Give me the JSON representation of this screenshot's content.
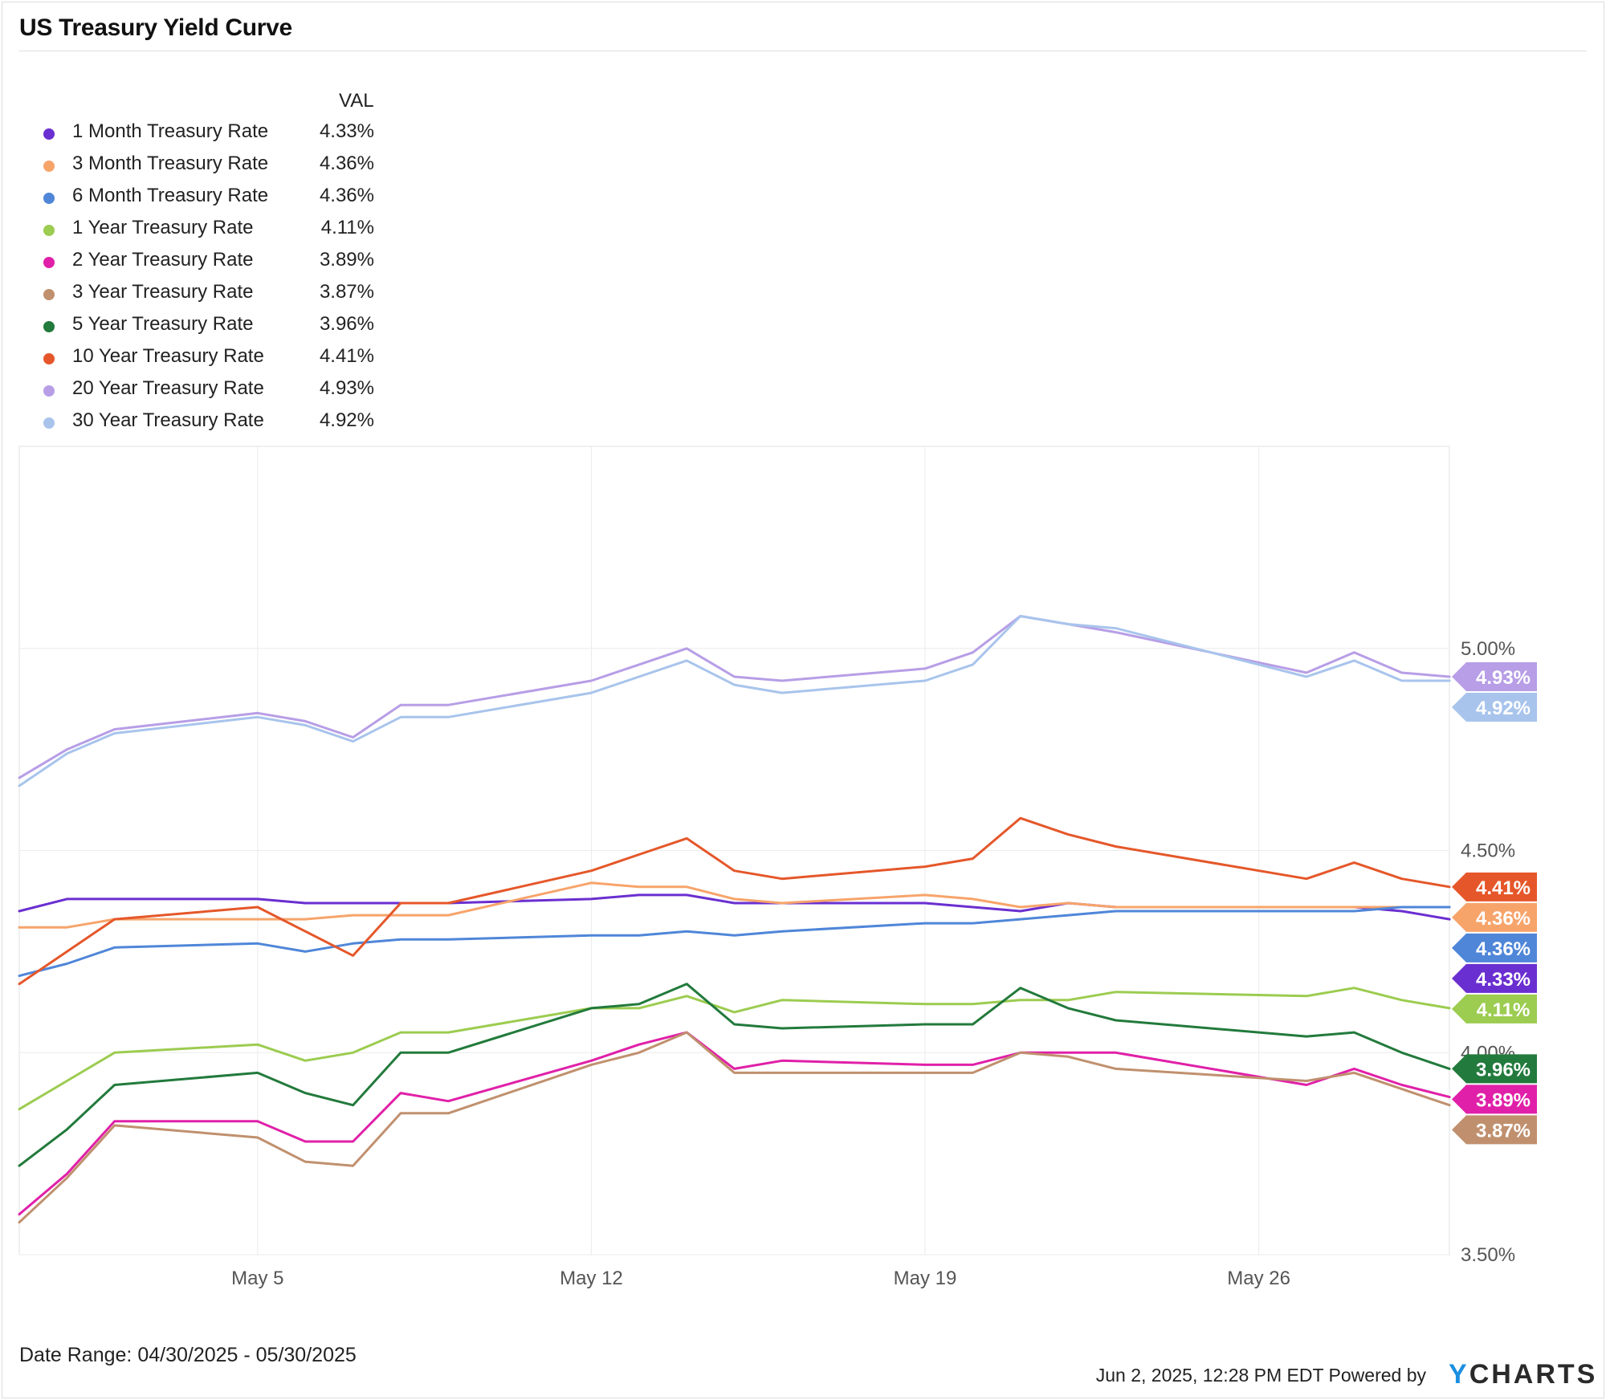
{
  "title": "US Treasury Yield Curve",
  "legend_header": "VAL",
  "date_range": "Date Range: 04/30/2025 - 05/30/2025",
  "footer": {
    "timestamp": "Jun 2, 2025, 12:28 PM EDT Powered by",
    "logo_y": "Y",
    "logo_rest": "CHARTS"
  },
  "chart_data": {
    "type": "line",
    "title": "US Treasury Yield Curve",
    "xlabel": "",
    "ylabel": "",
    "ylim": [
      3.5,
      5.5
    ],
    "yticks": [
      "3.50%",
      "4.00%",
      "4.50%",
      "5.00%"
    ],
    "xticks": [
      "May 5",
      "May 12",
      "May 19",
      "May 26"
    ],
    "grid": true,
    "legend_position": "top-left",
    "x": [
      "2025-04-30",
      "2025-05-01",
      "2025-05-02",
      "2025-05-05",
      "2025-05-06",
      "2025-05-07",
      "2025-05-08",
      "2025-05-09",
      "2025-05-12",
      "2025-05-13",
      "2025-05-14",
      "2025-05-15",
      "2025-05-16",
      "2025-05-19",
      "2025-05-20",
      "2025-05-21",
      "2025-05-22",
      "2025-05-23",
      "2025-05-27",
      "2025-05-28",
      "2025-05-29",
      "2025-05-30"
    ],
    "series": [
      {
        "name": "1 Month Treasury Rate",
        "color": "#6a2fd0",
        "label": "4.33%",
        "values": [
          4.35,
          4.38,
          4.38,
          4.38,
          4.37,
          4.37,
          4.37,
          4.37,
          4.38,
          4.39,
          4.39,
          4.37,
          4.37,
          4.37,
          4.36,
          4.35,
          4.37,
          4.36,
          4.36,
          4.36,
          4.35,
          4.33
        ]
      },
      {
        "name": "3 Month Treasury Rate",
        "color": "#f7a46b",
        "label": "4.36%",
        "values": [
          4.31,
          4.31,
          4.33,
          4.33,
          4.33,
          4.34,
          4.34,
          4.34,
          4.42,
          4.41,
          4.41,
          4.38,
          4.37,
          4.39,
          4.38,
          4.36,
          4.37,
          4.36,
          4.36,
          4.36,
          4.36,
          4.36
        ]
      },
      {
        "name": "6 Month Treasury Rate",
        "color": "#4f86d8",
        "label": "4.36%",
        "values": [
          4.19,
          4.22,
          4.26,
          4.27,
          4.25,
          4.27,
          4.28,
          4.28,
          4.29,
          4.29,
          4.3,
          4.29,
          4.3,
          4.32,
          4.32,
          4.33,
          4.34,
          4.35,
          4.35,
          4.35,
          4.36,
          4.36
        ]
      },
      {
        "name": "1 Year Treasury Rate",
        "color": "#9ccc50",
        "label": "4.11%",
        "values": [
          3.86,
          3.93,
          4.0,
          4.02,
          3.98,
          4.0,
          4.05,
          4.05,
          4.11,
          4.11,
          4.14,
          4.1,
          4.13,
          4.12,
          4.12,
          4.13,
          4.13,
          4.15,
          4.14,
          4.16,
          4.13,
          4.11
        ]
      },
      {
        "name": "2 Year Treasury Rate",
        "color": "#e020a8",
        "label": "3.89%",
        "values": [
          3.6,
          3.7,
          3.83,
          3.83,
          3.78,
          3.78,
          3.9,
          3.88,
          3.98,
          4.02,
          4.05,
          3.96,
          3.98,
          3.97,
          3.97,
          4.0,
          4.0,
          4.0,
          3.92,
          3.96,
          3.92,
          3.89
        ]
      },
      {
        "name": "3 Year Treasury Rate",
        "color": "#c0906e",
        "label": "3.87%",
        "values": [
          3.58,
          3.69,
          3.82,
          3.79,
          3.73,
          3.72,
          3.85,
          3.85,
          3.97,
          4.0,
          4.05,
          3.95,
          3.95,
          3.95,
          3.95,
          4.0,
          3.99,
          3.96,
          3.93,
          3.95,
          3.91,
          3.87
        ]
      },
      {
        "name": "5 Year Treasury Rate",
        "color": "#227a3c",
        "label": "3.96%",
        "values": [
          3.72,
          3.81,
          3.92,
          3.95,
          3.9,
          3.87,
          4.0,
          4.0,
          4.11,
          4.12,
          4.17,
          4.07,
          4.06,
          4.07,
          4.07,
          4.16,
          4.11,
          4.08,
          4.04,
          4.05,
          4.0,
          3.96
        ]
      },
      {
        "name": "10 Year Treasury Rate",
        "color": "#e5572a",
        "label": "4.41%",
        "values": [
          4.17,
          4.25,
          4.33,
          4.36,
          4.3,
          4.24,
          4.37,
          4.37,
          4.45,
          4.49,
          4.53,
          4.45,
          4.43,
          4.46,
          4.48,
          4.58,
          4.54,
          4.51,
          4.43,
          4.47,
          4.43,
          4.41
        ]
      },
      {
        "name": "20 Year Treasury Rate",
        "color": "#b79ee6",
        "label": "4.93%",
        "values": [
          4.68,
          4.75,
          4.8,
          4.84,
          4.82,
          4.78,
          4.86,
          4.86,
          4.92,
          4.96,
          5.0,
          4.93,
          4.92,
          4.95,
          4.99,
          5.08,
          5.06,
          5.04,
          4.94,
          4.99,
          4.94,
          4.93
        ]
      },
      {
        "name": "30 Year Treasury Rate",
        "color": "#a8c4ec",
        "label": "4.92%",
        "values": [
          4.66,
          4.74,
          4.79,
          4.83,
          4.81,
          4.77,
          4.83,
          4.83,
          4.89,
          4.93,
          4.97,
          4.91,
          4.89,
          4.92,
          4.96,
          5.08,
          5.06,
          5.05,
          4.93,
          4.97,
          4.92,
          4.92
        ]
      }
    ]
  }
}
